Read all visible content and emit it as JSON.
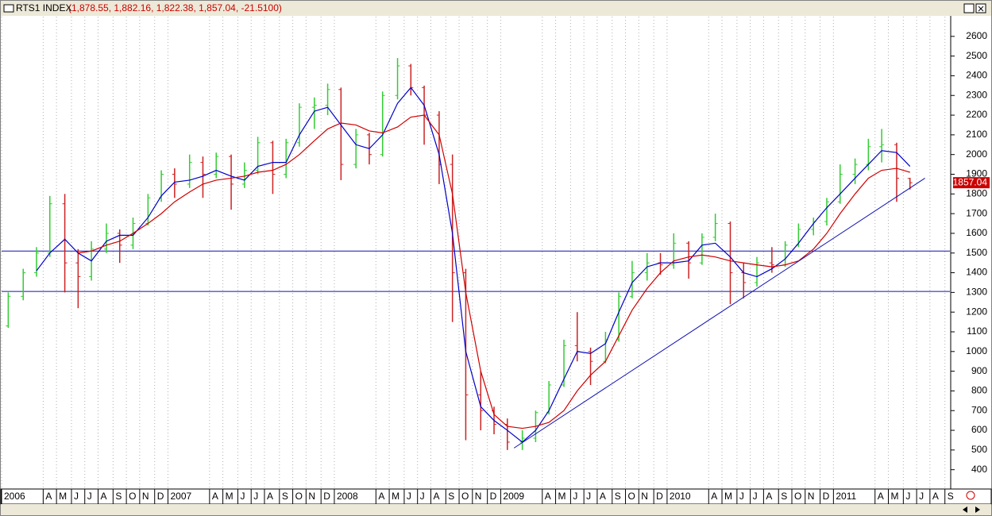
{
  "chart_data": {
    "type": "ohlc",
    "title": "RTS1 INDEX",
    "subtitle": "(1,878.55, 1,882.16, 1,822.38, 1,857.04, -21.5100)",
    "x": [
      2006.04,
      2006.13,
      2006.21,
      2006.29,
      2006.38,
      2006.46,
      2006.54,
      2006.63,
      2006.71,
      2006.79,
      2006.88,
      2006.96,
      2007.04,
      2007.13,
      2007.21,
      2007.29,
      2007.38,
      2007.46,
      2007.54,
      2007.63,
      2007.71,
      2007.79,
      2007.88,
      2007.96,
      2008.04,
      2008.13,
      2008.21,
      2008.29,
      2008.38,
      2008.46,
      2008.54,
      2008.63,
      2008.71,
      2008.79,
      2008.88,
      2008.96,
      2009.04,
      2009.13,
      2009.21,
      2009.29,
      2009.38,
      2009.46,
      2009.54,
      2009.63,
      2009.71,
      2009.79,
      2009.88,
      2009.96,
      2010.04,
      2010.13,
      2010.21,
      2010.29,
      2010.38,
      2010.46,
      2010.54,
      2010.63,
      2010.71,
      2010.79,
      2010.88,
      2010.96,
      2011.04,
      2011.13,
      2011.21,
      2011.29,
      2011.38,
      2011.46
    ],
    "open": [
      1130,
      1280,
      1400,
      1500,
      1750,
      1450,
      1380,
      1520,
      1600,
      1540,
      1650,
      1780,
      1900,
      1850,
      1960,
      1900,
      1990,
      1850,
      1920,
      2060,
      1900,
      2060,
      2240,
      2250,
      2330,
      1950,
      2100,
      2000,
      2300,
      2450,
      2340,
      2200,
      1950,
      1400,
      780,
      700,
      630,
      540,
      560,
      690,
      830,
      1030,
      1000,
      950,
      1060,
      1280,
      1400,
      1450,
      1440,
      1550,
      1450,
      1580,
      1650,
      1400,
      1350,
      1450,
      1440,
      1540,
      1620,
      1660,
      1760,
      1900,
      1950,
      2040,
      2050,
      1878.55
    ],
    "high": [
      1300,
      1420,
      1530,
      1790,
      1800,
      1520,
      1560,
      1650,
      1620,
      1680,
      1800,
      1920,
      1930,
      2000,
      1990,
      2010,
      2000,
      1960,
      2090,
      2070,
      2080,
      2260,
      2290,
      2360,
      2340,
      2130,
      2110,
      2320,
      2490,
      2460,
      2350,
      2220,
      2000,
      1420,
      900,
      720,
      660,
      600,
      700,
      850,
      1060,
      1200,
      1020,
      1100,
      1300,
      1460,
      1500,
      1500,
      1600,
      1560,
      1600,
      1700,
      1660,
      1450,
      1480,
      1530,
      1560,
      1650,
      1680,
      1780,
      1950,
      1980,
      2080,
      2130,
      2060,
      1882.16
    ],
    "low": [
      1120,
      1260,
      1380,
      1480,
      1300,
      1220,
      1360,
      1500,
      1450,
      1520,
      1640,
      1760,
      1780,
      1830,
      1780,
      1880,
      1720,
      1830,
      1900,
      1800,
      1880,
      2040,
      2130,
      2200,
      1870,
      1930,
      1950,
      1990,
      2280,
      2300,
      2050,
      1850,
      1150,
      550,
      600,
      580,
      500,
      500,
      540,
      680,
      820,
      950,
      830,
      940,
      1050,
      1270,
      1360,
      1390,
      1420,
      1370,
      1440,
      1560,
      1240,
      1270,
      1330,
      1400,
      1430,
      1530,
      1590,
      1640,
      1750,
      1850,
      1920,
      1960,
      1760,
      1822.38
    ],
    "close": [
      1280,
      1400,
      1500,
      1750,
      1450,
      1380,
      1520,
      1600,
      1540,
      1650,
      1780,
      1900,
      1850,
      1960,
      1900,
      1990,
      1850,
      1920,
      2060,
      1900,
      2060,
      2240,
      2250,
      2330,
      1950,
      2100,
      2000,
      2300,
      2450,
      2340,
      2200,
      1950,
      1400,
      780,
      700,
      630,
      540,
      560,
      690,
      830,
      1030,
      1000,
      950,
      1060,
      1280,
      1400,
      1450,
      1440,
      1550,
      1450,
      1580,
      1650,
      1400,
      1350,
      1450,
      1440,
      1540,
      1620,
      1660,
      1760,
      1900,
      1950,
      2040,
      2050,
      1880,
      1857.04
    ],
    "up_color": "#33cc33",
    "down_color": "#cc2222",
    "lines": [
      {
        "color": "#0000c8",
        "values": [
          null,
          null,
          1410,
          1500,
          1570,
          1500,
          1460,
          1560,
          1590,
          1590,
          1680,
          1790,
          1860,
          1870,
          1890,
          1920,
          1890,
          1870,
          1940,
          1960,
          1960,
          2100,
          2220,
          2240,
          2150,
          2050,
          2030,
          2100,
          2260,
          2340,
          2250,
          2000,
          1600,
          1000,
          720,
          650,
          600,
          540,
          600,
          700,
          860,
          1000,
          990,
          1040,
          1200,
          1350,
          1430,
          1450,
          1450,
          1460,
          1540,
          1550,
          1480,
          1400,
          1380,
          1420,
          1470,
          1550,
          1650,
          1730,
          1800,
          1880,
          1950,
          2020,
          2010,
          1940
        ]
      },
      {
        "color": "#d00000",
        "values": [
          null,
          null,
          null,
          null,
          null,
          1500,
          1510,
          1540,
          1560,
          1600,
          1650,
          1700,
          1760,
          1810,
          1850,
          1870,
          1880,
          1890,
          1910,
          1920,
          1950,
          2000,
          2070,
          2130,
          2160,
          2150,
          2120,
          2110,
          2140,
          2190,
          2200,
          2100,
          1800,
          1300,
          900,
          680,
          620,
          610,
          620,
          640,
          700,
          800,
          880,
          950,
          1080,
          1210,
          1320,
          1400,
          1460,
          1480,
          1490,
          1480,
          1460,
          1450,
          1440,
          1430,
          1440,
          1460,
          1520,
          1600,
          1700,
          1800,
          1880,
          1920,
          1930,
          1910
        ]
      }
    ],
    "hlines": [
      1510,
      1305
    ],
    "trendline": {
      "x": [
        2009.08,
        2011.55
      ],
      "y": [
        510,
        1880
      ]
    },
    "trend_color": "#1010b0",
    "last_price": 1857.04,
    "xlim": [
      2006.0,
      2011.7
    ],
    "ylim": [
      310,
      2700
    ],
    "yticks": [
      400,
      500,
      600,
      700,
      800,
      900,
      1000,
      1100,
      1200,
      1300,
      1400,
      1500,
      1600,
      1700,
      1800,
      1900,
      2000,
      2100,
      2200,
      2300,
      2400,
      2500,
      2600
    ],
    "xticks": [
      {
        "value": 2006.0,
        "label": "2006"
      },
      {
        "value": 2006.25,
        "label": "A"
      },
      {
        "value": 2006.33,
        "label": "M"
      },
      {
        "value": 2006.42,
        "label": "J"
      },
      {
        "value": 2006.5,
        "label": "J"
      },
      {
        "value": 2006.58,
        "label": "A"
      },
      {
        "value": 2006.67,
        "label": "S"
      },
      {
        "value": 2006.75,
        "label": "O"
      },
      {
        "value": 2006.83,
        "label": "N"
      },
      {
        "value": 2006.92,
        "label": "D"
      },
      {
        "value": 2007.0,
        "label": "2007"
      },
      {
        "value": 2007.25,
        "label": "A"
      },
      {
        "value": 2007.33,
        "label": "M"
      },
      {
        "value": 2007.42,
        "label": "J"
      },
      {
        "value": 2007.5,
        "label": "J"
      },
      {
        "value": 2007.58,
        "label": "A"
      },
      {
        "value": 2007.67,
        "label": "S"
      },
      {
        "value": 2007.75,
        "label": "O"
      },
      {
        "value": 2007.83,
        "label": "N"
      },
      {
        "value": 2007.92,
        "label": "D"
      },
      {
        "value": 2008.0,
        "label": "2008"
      },
      {
        "value": 2008.25,
        "label": "A"
      },
      {
        "value": 2008.33,
        "label": "M"
      },
      {
        "value": 2008.42,
        "label": "J"
      },
      {
        "value": 2008.5,
        "label": "J"
      },
      {
        "value": 2008.58,
        "label": "A"
      },
      {
        "value": 2008.67,
        "label": "S"
      },
      {
        "value": 2008.75,
        "label": "O"
      },
      {
        "value": 2008.83,
        "label": "N"
      },
      {
        "value": 2008.92,
        "label": "D"
      },
      {
        "value": 2009.0,
        "label": "2009"
      },
      {
        "value": 2009.25,
        "label": "A"
      },
      {
        "value": 2009.33,
        "label": "M"
      },
      {
        "value": 2009.42,
        "label": "J"
      },
      {
        "value": 2009.5,
        "label": "J"
      },
      {
        "value": 2009.58,
        "label": "A"
      },
      {
        "value": 2009.67,
        "label": "S"
      },
      {
        "value": 2009.75,
        "label": "O"
      },
      {
        "value": 2009.83,
        "label": "N"
      },
      {
        "value": 2009.92,
        "label": "D"
      },
      {
        "value": 2010.0,
        "label": "2010"
      },
      {
        "value": 2010.25,
        "label": "A"
      },
      {
        "value": 2010.33,
        "label": "M"
      },
      {
        "value": 2010.42,
        "label": "J"
      },
      {
        "value": 2010.5,
        "label": "J"
      },
      {
        "value": 2010.58,
        "label": "A"
      },
      {
        "value": 2010.67,
        "label": "S"
      },
      {
        "value": 2010.75,
        "label": "O"
      },
      {
        "value": 2010.83,
        "label": "N"
      },
      {
        "value": 2010.92,
        "label": "D"
      },
      {
        "value": 2011.0,
        "label": "2011"
      },
      {
        "value": 2011.25,
        "label": "A"
      },
      {
        "value": 2011.33,
        "label": "M"
      },
      {
        "value": 2011.42,
        "label": "J"
      },
      {
        "value": 2011.5,
        "label": "J"
      },
      {
        "value": 2011.58,
        "label": "A"
      },
      {
        "value": 2011.67,
        "label": "S"
      }
    ],
    "grid": true
  }
}
